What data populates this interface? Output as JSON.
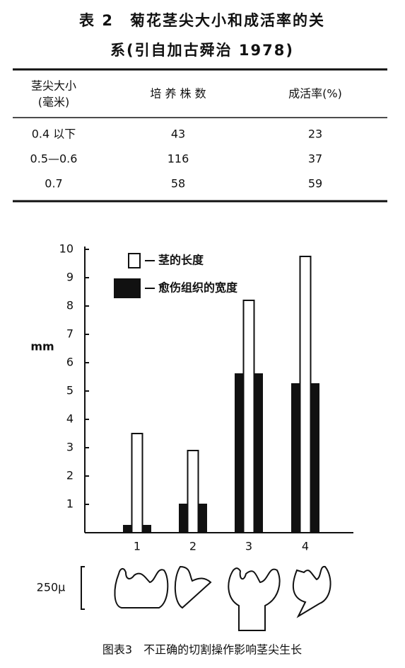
{
  "table": {
    "title_lines": [
      "表 2　菊花茎尖大小和成活率的关",
      "系(引自加古舜治 1978)"
    ],
    "header": [
      [
        "茎尖大小",
        "(毫米)"
      ],
      "培 养 株 数",
      "成活率(%)"
    ],
    "rows": [
      [
        "0.4 以下",
        43,
        23
      ],
      [
        "0.5—0.6",
        116,
        37
      ],
      [
        "0.7",
        58,
        59
      ]
    ]
  },
  "chart_data": {
    "type": "bar",
    "y_label": "mm",
    "categories": [
      "1",
      "2",
      "3",
      "4"
    ],
    "series": [
      {
        "name": "茎的长度",
        "color": "#ffffff",
        "values": [
          3.5,
          2.9,
          8.2,
          9.75
        ]
      },
      {
        "name": "愈伤组织的宽度",
        "color": "#111111",
        "values": [
          0.25,
          1.0,
          5.6,
          5.25
        ]
      }
    ],
    "ylim": [
      0,
      10
    ],
    "yticks": [
      1,
      2,
      3,
      4,
      5,
      6,
      7,
      8,
      9,
      10
    ],
    "grid": false
  },
  "scale_label": "250μ",
  "caption": "图表3　不正确的切割操作影响茎尖生长"
}
